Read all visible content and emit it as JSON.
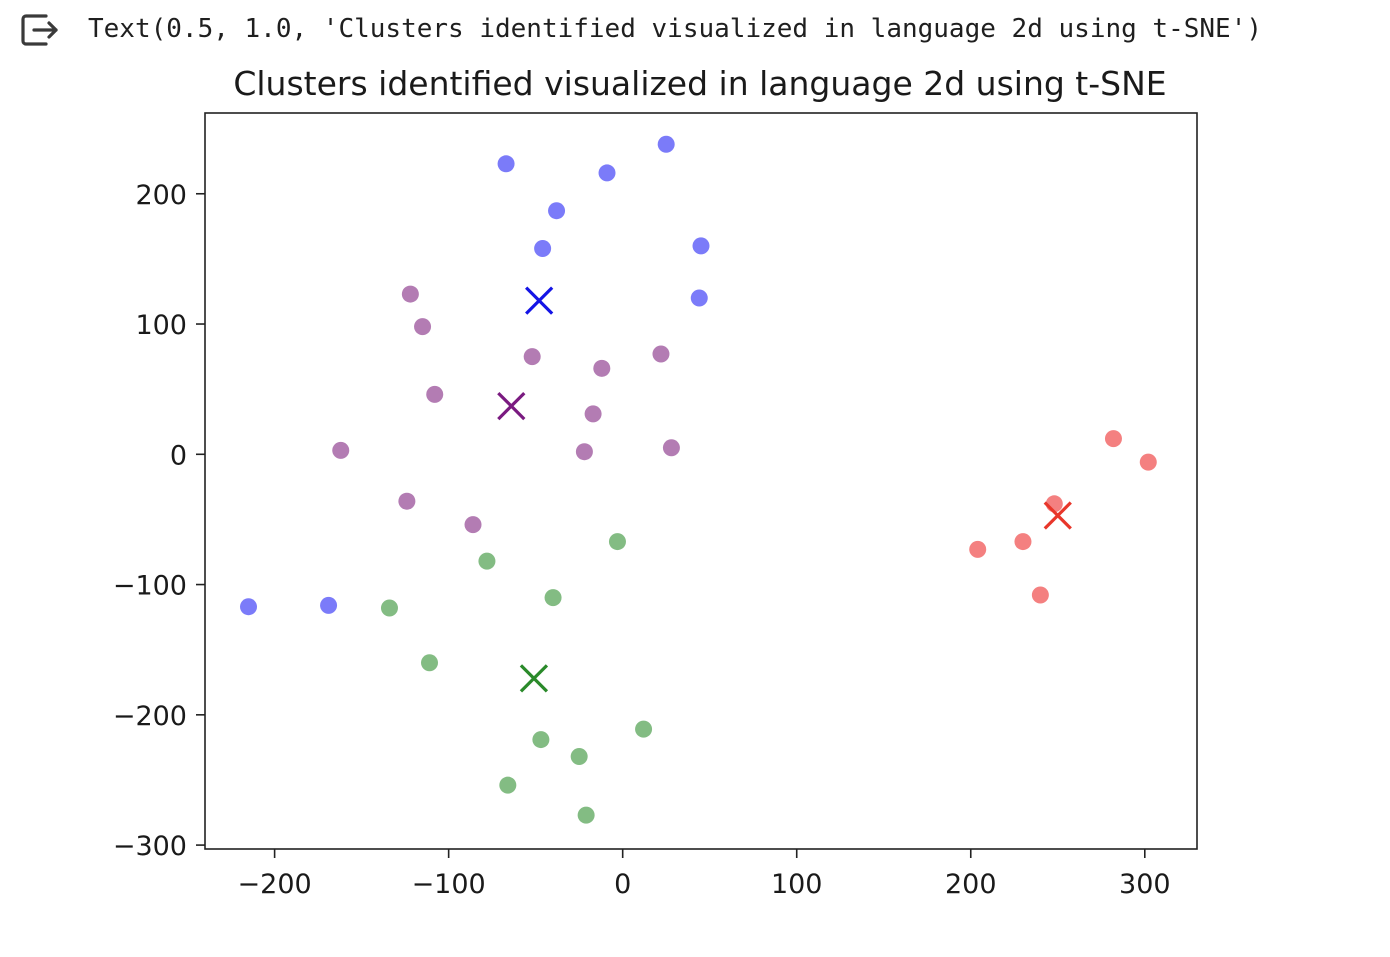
{
  "output": {
    "text": "Text(0.5, 1.0, 'Clusters identified visualized in language 2d using t-SNE')",
    "icon": "output-redirect-icon"
  },
  "chart_data": {
    "type": "scatter",
    "title": "Clusters identified visualized in language 2d using t-SNE",
    "xlabel": "",
    "ylabel": "",
    "xlim": [
      -240,
      330
    ],
    "ylim": [
      -303,
      262
    ],
    "xticks": [
      -200,
      -100,
      0,
      100,
      200,
      300
    ],
    "yticks": [
      -300,
      -200,
      -100,
      0,
      100,
      200
    ],
    "xtick_labels": [
      "−200",
      "−100",
      "0",
      "100",
      "200",
      "300"
    ],
    "ytick_labels": [
      "−300",
      "−200",
      "−100",
      "0",
      "100",
      "200"
    ],
    "grid": false,
    "series": [
      {
        "color": "#4f4ff7",
        "points": [
          [
            -67,
            223
          ],
          [
            -9,
            216
          ],
          [
            25,
            238
          ],
          [
            -38,
            187
          ],
          [
            -46,
            158
          ],
          [
            45,
            160
          ],
          [
            44,
            120
          ],
          [
            -215,
            -117
          ],
          [
            -169,
            -116
          ]
        ]
      },
      {
        "color": "#995099",
        "points": [
          [
            -122,
            123
          ],
          [
            -115,
            98
          ],
          [
            -108,
            46
          ],
          [
            -162,
            3
          ],
          [
            -52,
            75
          ],
          [
            -12,
            66
          ],
          [
            22,
            77
          ],
          [
            -17,
            31
          ],
          [
            -22,
            2
          ],
          [
            28,
            5
          ],
          [
            -124,
            -36
          ],
          [
            -86,
            -54
          ]
        ]
      },
      {
        "color": "#5aa55a",
        "points": [
          [
            -78,
            -82
          ],
          [
            -3,
            -67
          ],
          [
            -134,
            -118
          ],
          [
            -40,
            -110
          ],
          [
            -111,
            -160
          ],
          [
            -47,
            -219
          ],
          [
            -25,
            -232
          ],
          [
            12,
            -211
          ],
          [
            -66,
            -254
          ],
          [
            -21,
            -277
          ]
        ]
      },
      {
        "color": "#f05555",
        "points": [
          [
            282,
            12
          ],
          [
            302,
            -6
          ],
          [
            248,
            -38
          ],
          [
            204,
            -73
          ],
          [
            230,
            -67
          ],
          [
            240,
            -108
          ]
        ]
      }
    ],
    "centroids": [
      {
        "color": "#1414e6",
        "x": -48,
        "y": 118
      },
      {
        "color": "#7a1a80",
        "x": -64,
        "y": 37
      },
      {
        "color": "#2a8a2a",
        "x": -51,
        "y": -172
      },
      {
        "color": "#e8362a",
        "x": 250,
        "y": -47
      }
    ]
  }
}
